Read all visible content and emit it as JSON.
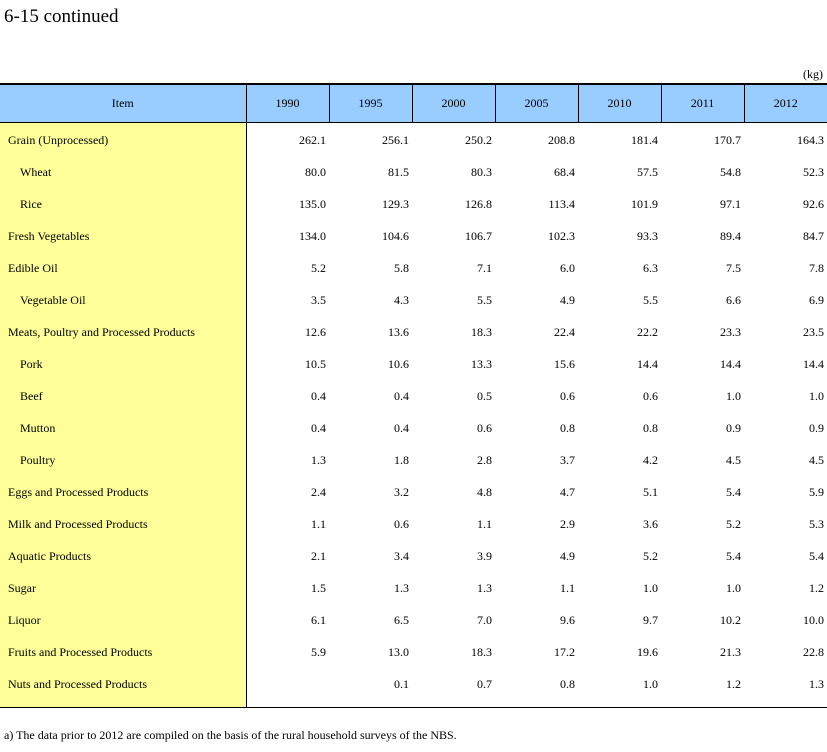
{
  "page_title": "6-15 continued",
  "unit": "(kg)",
  "table": {
    "item_header": "Item",
    "years": [
      "1990",
      "1995",
      "2000",
      "2005",
      "2010",
      "2011",
      "2012"
    ],
    "rows": [
      {
        "label": "Grain (Unprocessed)",
        "indent": false,
        "values": [
          "262.1",
          "256.1",
          "250.2",
          "208.8",
          "181.4",
          "170.7",
          "164.3"
        ]
      },
      {
        "label": "Wheat",
        "indent": true,
        "values": [
          "80.0",
          "81.5",
          "80.3",
          "68.4",
          "57.5",
          "54.8",
          "52.3"
        ]
      },
      {
        "label": "Rice",
        "indent": true,
        "values": [
          "135.0",
          "129.3",
          "126.8",
          "113.4",
          "101.9",
          "97.1",
          "92.6"
        ]
      },
      {
        "label": "Fresh Vegetables",
        "indent": false,
        "values": [
          "134.0",
          "104.6",
          "106.7",
          "102.3",
          "93.3",
          "89.4",
          "84.7"
        ]
      },
      {
        "label": "Edible Oil",
        "indent": false,
        "values": [
          "5.2",
          "5.8",
          "7.1",
          "6.0",
          "6.3",
          "7.5",
          "7.8"
        ]
      },
      {
        "label": "Vegetable Oil",
        "indent": true,
        "values": [
          "3.5",
          "4.3",
          "5.5",
          "4.9",
          "5.5",
          "6.6",
          "6.9"
        ]
      },
      {
        "label": "Meats, Poultry and Processed Products",
        "indent": false,
        "values": [
          "12.6",
          "13.6",
          "18.3",
          "22.4",
          "22.2",
          "23.3",
          "23.5"
        ]
      },
      {
        "label": "Pork",
        "indent": true,
        "values": [
          "10.5",
          "10.6",
          "13.3",
          "15.6",
          "14.4",
          "14.4",
          "14.4"
        ]
      },
      {
        "label": "Beef",
        "indent": true,
        "values": [
          "0.4",
          "0.4",
          "0.5",
          "0.6",
          "0.6",
          "1.0",
          "1.0"
        ]
      },
      {
        "label": "Mutton",
        "indent": true,
        "values": [
          "0.4",
          "0.4",
          "0.6",
          "0.8",
          "0.8",
          "0.9",
          "0.9"
        ]
      },
      {
        "label": "Poultry",
        "indent": true,
        "values": [
          "1.3",
          "1.8",
          "2.8",
          "3.7",
          "4.2",
          "4.5",
          "4.5"
        ]
      },
      {
        "label": "Eggs and Processed Products",
        "indent": false,
        "values": [
          "2.4",
          "3.2",
          "4.8",
          "4.7",
          "5.1",
          "5.4",
          "5.9"
        ]
      },
      {
        "label": "Milk and Processed Products",
        "indent": false,
        "values": [
          "1.1",
          "0.6",
          "1.1",
          "2.9",
          "3.6",
          "5.2",
          "5.3"
        ]
      },
      {
        "label": "Aquatic Products",
        "indent": false,
        "values": [
          "2.1",
          "3.4",
          "3.9",
          "4.9",
          "5.2",
          "5.4",
          "5.4"
        ]
      },
      {
        "label": "Sugar",
        "indent": false,
        "values": [
          "1.5",
          "1.3",
          "1.3",
          "1.1",
          "1.0",
          "1.0",
          "1.2"
        ]
      },
      {
        "label": "Liquor",
        "indent": false,
        "values": [
          "6.1",
          "6.5",
          "7.0",
          "9.6",
          "9.7",
          "10.2",
          "10.0"
        ]
      },
      {
        "label": "Fruits and Processed Products",
        "indent": false,
        "values": [
          "5.9",
          "13.0",
          "18.3",
          "17.2",
          "19.6",
          "21.3",
          "22.8"
        ]
      },
      {
        "label": "Nuts and Processed Products",
        "indent": false,
        "values": [
          "",
          "0.1",
          "0.7",
          "0.8",
          "1.0",
          "1.2",
          "1.3"
        ]
      }
    ]
  },
  "footnote": "a) The data prior to 2012 are compiled on the basis of the rural household surveys of the NBS.",
  "colors": {
    "header_bg": "#99ccff",
    "item_bg": "#ffff99"
  }
}
